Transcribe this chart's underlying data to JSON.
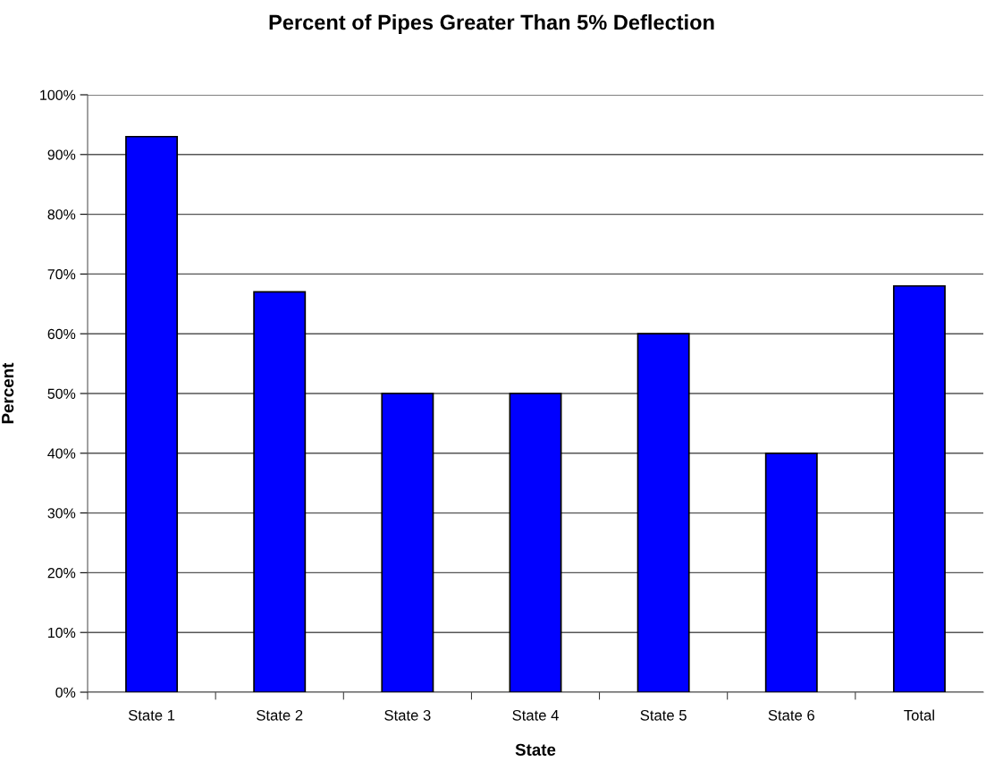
{
  "chart_data": {
    "type": "bar",
    "title": "Percent of Pipes Greater Than 5% Deflection",
    "xlabel": "State",
    "ylabel": "Percent",
    "categories": [
      "State 1",
      "State 2",
      "State 3",
      "State 4",
      "State 5",
      "State 6",
      "Total"
    ],
    "values": [
      93,
      67,
      50,
      50,
      60,
      40,
      68
    ],
    "color": "#0000ff",
    "ylim": [
      0,
      100
    ],
    "yticks": [
      {
        "value": 0,
        "label": "0%"
      },
      {
        "value": 10,
        "label": "10%"
      },
      {
        "value": 20,
        "label": "20%"
      },
      {
        "value": 30,
        "label": "30%"
      },
      {
        "value": 40,
        "label": "40%"
      },
      {
        "value": 50,
        "label": "50%"
      },
      {
        "value": 60,
        "label": "60%"
      },
      {
        "value": 70,
        "label": "70%"
      },
      {
        "value": 80,
        "label": "80%"
      },
      {
        "value": 90,
        "label": "90%"
      },
      {
        "value": 100,
        "label": "100%"
      }
    ],
    "grid": "y",
    "legend": false
  }
}
